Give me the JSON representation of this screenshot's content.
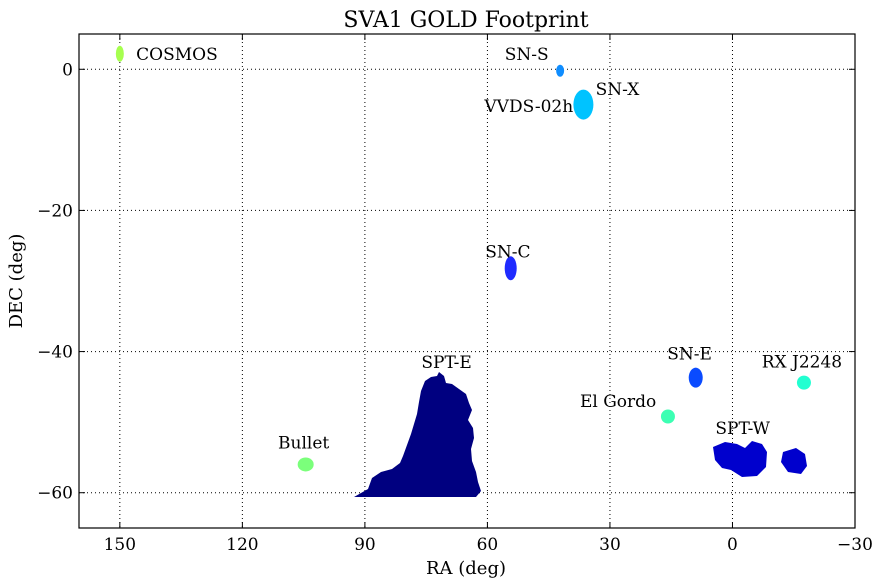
{
  "chart_data": {
    "type": "scatter",
    "title": "SVA1 GOLD Footprint",
    "xlabel": "RA (deg)",
    "ylabel": "DEC (deg)",
    "xlim": [
      160,
      -30
    ],
    "ylim": [
      -65,
      5
    ],
    "x_reversed": true,
    "grid": true,
    "x_ticks": [
      150,
      120,
      90,
      60,
      30,
      0,
      -30
    ],
    "x_tick_labels": [
      "150",
      "120",
      "90",
      "60",
      "30",
      "0",
      "−30"
    ],
    "y_ticks": [
      0,
      -20,
      -40,
      -60
    ],
    "y_tick_labels": [
      "0",
      "−20",
      "−40",
      "−60"
    ],
    "regions": [
      {
        "name": "COSMOS",
        "ra": 150,
        "dec": 2.2,
        "color": "#a6ff4f",
        "label_ra": 146,
        "label_dec": 2.2,
        "label_anchor": "start"
      },
      {
        "name": "SN-S",
        "ra": 42.2,
        "dec": -0.2,
        "color": "#0f8dff",
        "label_ra": 45,
        "label_dec": 2.2,
        "label_anchor": "end"
      },
      {
        "name": "SN-X",
        "ra": 35.6,
        "dec": -4.8,
        "color": "#8b0000",
        "label_ra": 33.5,
        "label_dec": -2.8,
        "label_anchor": "start"
      },
      {
        "name": "VVDS-02h",
        "ra": 36.5,
        "dec": -5.0,
        "color": "#00c3ff",
        "label_ra": 39,
        "label_dec": -5.2,
        "label_anchor": "end"
      },
      {
        "name": "SN-C",
        "ra": 54.3,
        "dec": -28.2,
        "color": "#1f2bff",
        "label_ra": 55,
        "label_dec": -25.8,
        "label_anchor": "middle"
      },
      {
        "name": "SN-E",
        "ra": 9.0,
        "dec": -43.7,
        "color": "#0a4bff",
        "label_ra": 10.5,
        "label_dec": -40.3,
        "label_anchor": "middle"
      },
      {
        "name": "RX J2248",
        "ra": -17.5,
        "dec": -44.4,
        "color": "#22ffd1",
        "label_ra": -17,
        "label_dec": -41.4,
        "label_anchor": "middle"
      },
      {
        "name": "El Gordo",
        "ra": 15.8,
        "dec": -49.2,
        "color": "#3cffb3",
        "label_ra": 28,
        "label_dec": -47.0,
        "label_anchor": "middle"
      },
      {
        "name": "SPT-W",
        "ra": 3,
        "dec": -55,
        "color": "#0000cd",
        "label_ra": -2.5,
        "label_dec": -50.8,
        "label_anchor": "middle"
      },
      {
        "name": "Bullet",
        "ra": 104.5,
        "dec": -56.0,
        "color": "#7bff7b",
        "label_ra": 105,
        "label_dec": -52.9,
        "label_anchor": "middle"
      },
      {
        "name": "SPT-E",
        "ra": 72,
        "dec": -54,
        "color": "#000080",
        "label_ra": 70,
        "label_dec": -41.5,
        "label_anchor": "middle"
      }
    ]
  }
}
